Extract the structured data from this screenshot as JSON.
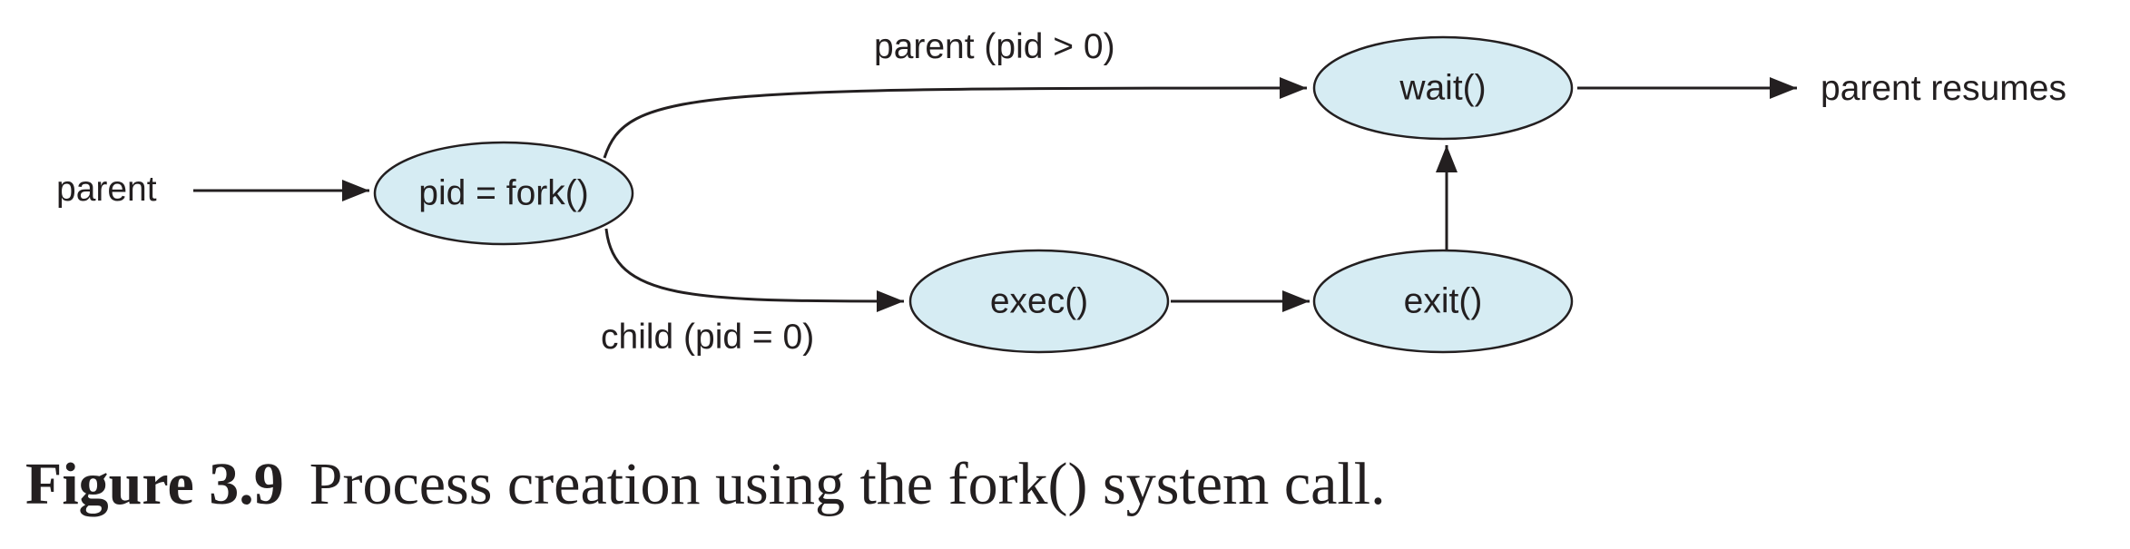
{
  "diagram": {
    "node_fill": "#d6ecf3",
    "stroke_color": "#231f20",
    "nodes": {
      "fork": "pid = fork()",
      "wait": "wait()",
      "exec": "exec()",
      "exit": "exit()"
    },
    "labels": {
      "parent": "parent",
      "parent_branch": "parent (pid > 0)",
      "child_branch": "child (pid = 0)",
      "parent_resumes": "parent resumes"
    }
  },
  "caption": {
    "figure_number": "Figure 3.9",
    "text": "Process creation using the fork() system call."
  }
}
